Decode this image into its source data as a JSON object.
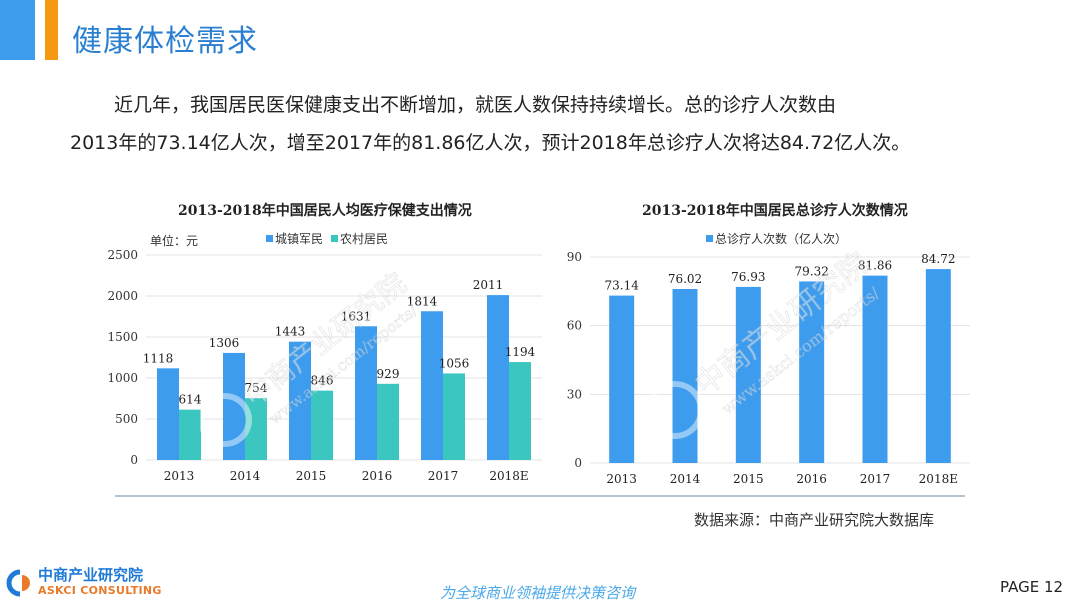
{
  "header": {
    "title": "健康体检需求"
  },
  "intro": {
    "line1": "近几年，我国居民医保健康支出不断增加，就医人数保持持续增长。总的诊疗人次数由",
    "line2": "2013年的73.14亿人次，增至2017年的81.86亿人次，预计2018年总诊疗人次将达84.72亿人次。"
  },
  "colors": {
    "blue": "#3d9cee",
    "teal": "#3cc6c0",
    "title_blue": "#2a7fd0",
    "orange": "#f59a10"
  },
  "watermark": {
    "cn": "中商产业研究院",
    "url": "www.askci.com/reports/"
  },
  "chart_data": [
    {
      "type": "bar",
      "title": "2013-2018年中国居民人均医疗保健支出情况",
      "unit_label": "单位：元",
      "categories": [
        "2013",
        "2014",
        "2015",
        "2016",
        "2017",
        "2018E"
      ],
      "series": [
        {
          "name": "城镇军民",
          "values": [
            1118,
            1306,
            1443,
            1631,
            1814,
            2011
          ]
        },
        {
          "name": "农村居民",
          "values": [
            614,
            754,
            846,
            929,
            1056,
            1194
          ]
        }
      ],
      "yticks": [
        "0",
        "500",
        "1000",
        "1500",
        "2000",
        "2500"
      ],
      "ylim": [
        0,
        2500
      ],
      "grid": true,
      "legend": "top-center"
    },
    {
      "type": "bar",
      "title": "2013-2018年中国居民总诊疗人次数情况",
      "categories": [
        "2013",
        "2014",
        "2015",
        "2016",
        "2017",
        "2018E"
      ],
      "series": [
        {
          "name": "总诊疗人次数（亿人次）",
          "values": [
            73.14,
            76.02,
            76.93,
            79.32,
            81.86,
            84.72
          ]
        }
      ],
      "value_labels": [
        "73.14",
        "76.02",
        "76.93",
        "79.32",
        "81.86",
        "84.72"
      ],
      "yticks": [
        "0",
        "30",
        "60",
        "90"
      ],
      "ylim": [
        0,
        90
      ],
      "grid": true,
      "legend": "top-center"
    }
  ],
  "source": "数据来源：中商产业研究院大数据库",
  "footer": {
    "logo_cn": "中商产业研究院",
    "logo_en": "ASKCI CONSULTING",
    "slogan": "为全球商业领袖提供决策咨询",
    "page": "PAGE  12"
  }
}
